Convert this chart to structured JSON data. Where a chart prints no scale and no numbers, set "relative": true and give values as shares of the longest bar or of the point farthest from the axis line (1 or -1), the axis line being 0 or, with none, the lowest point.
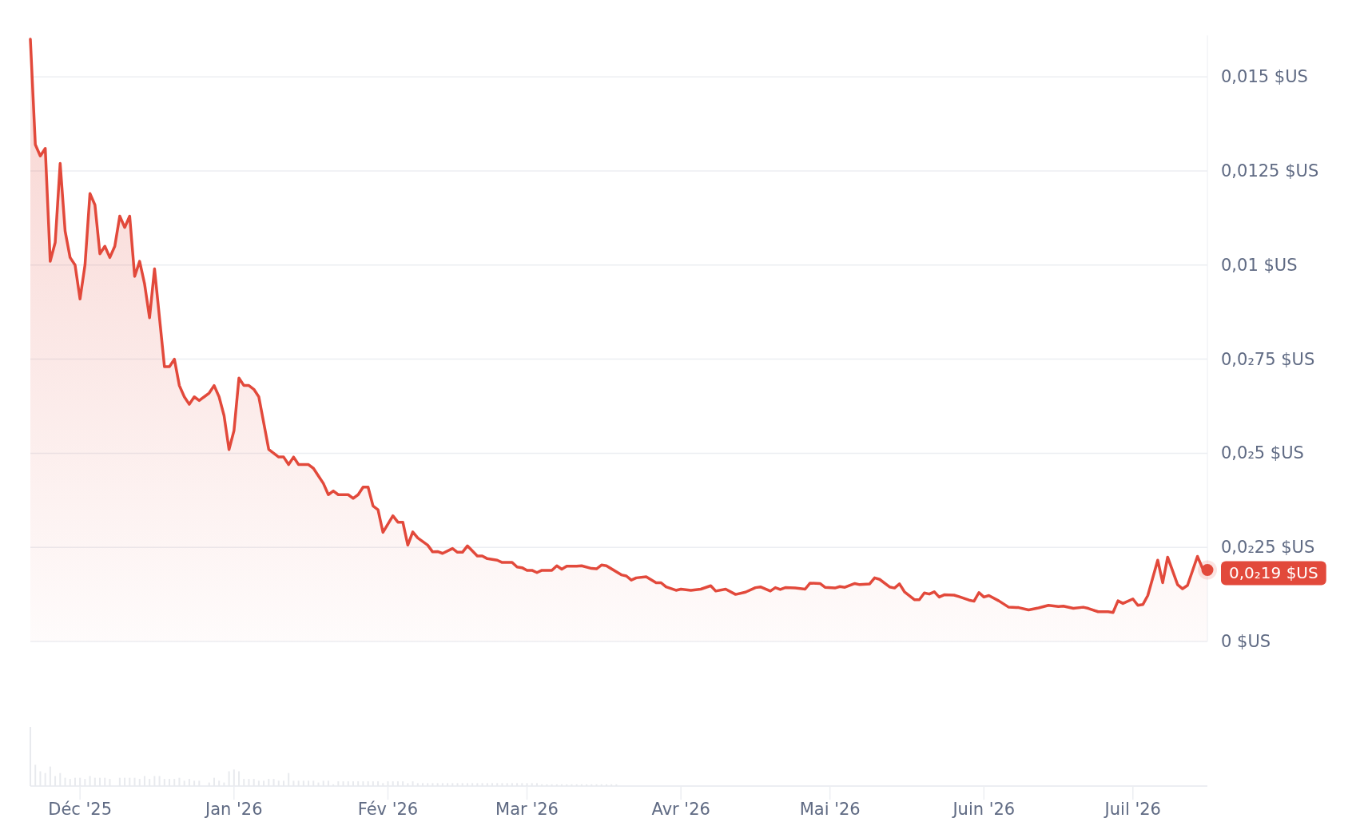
{
  "chart_data": [
    {
      "type": "area",
      "x": [
        "2025-11-21",
        "2025-11-22",
        "2025-11-23",
        "2025-11-24",
        "2025-11-25",
        "2025-11-26",
        "2025-11-27",
        "2025-11-28",
        "2025-11-29",
        "2025-11-30",
        "2025-12-01",
        "2025-12-02",
        "2025-12-03",
        "2025-12-04",
        "2025-12-05",
        "2025-12-06",
        "2025-12-07",
        "2025-12-08",
        "2025-12-09",
        "2025-12-10",
        "2025-12-11",
        "2025-12-12",
        "2025-12-13",
        "2025-12-14",
        "2025-12-15",
        "2025-12-16",
        "2025-12-18",
        "2025-12-19",
        "2025-12-20",
        "2025-12-21",
        "2025-12-22",
        "2025-12-23",
        "2025-12-24",
        "2025-12-25",
        "2025-12-26",
        "2025-12-27",
        "2025-12-28",
        "2025-12-29",
        "2025-12-30",
        "2025-12-31",
        "2026-01-01",
        "2026-01-02",
        "2026-01-03",
        "2026-01-04",
        "2026-01-05",
        "2026-01-06",
        "2026-01-08",
        "2026-01-09",
        "2026-01-10",
        "2026-01-11",
        "2026-01-12",
        "2026-01-13",
        "2026-01-14",
        "2026-01-16",
        "2026-01-17",
        "2026-01-18",
        "2026-01-19",
        "2026-01-20",
        "2026-01-21",
        "2026-01-22",
        "2026-01-24",
        "2026-01-25",
        "2026-01-26",
        "2026-01-27",
        "2026-01-28",
        "2026-01-29",
        "2026-01-30",
        "2026-01-31",
        "2026-02-02",
        "2026-02-03",
        "2026-02-04",
        "2026-02-05",
        "2026-02-06",
        "2026-02-07",
        "2026-02-09",
        "2026-02-10",
        "2026-02-11",
        "2026-02-12",
        "2026-02-14",
        "2026-02-15",
        "2026-02-16",
        "2026-02-17",
        "2026-02-19",
        "2026-02-20",
        "2026-02-21",
        "2026-02-23",
        "2026-02-24",
        "2026-02-26",
        "2026-02-27",
        "2026-02-28",
        "2026-03-01",
        "2026-03-02",
        "2026-03-03",
        "2026-03-04",
        "2026-03-06",
        "2026-03-07",
        "2026-03-08",
        "2026-03-09",
        "2026-03-11",
        "2026-03-12",
        "2026-03-14",
        "2026-03-15",
        "2026-03-16",
        "2026-03-17",
        "2026-03-20",
        "2026-03-21",
        "2026-03-22",
        "2026-03-23",
        "2026-03-25",
        "2026-03-27",
        "2026-03-28",
        "2026-03-29",
        "2026-03-31",
        "2026-04-01",
        "2026-04-03",
        "2026-04-05",
        "2026-04-07",
        "2026-04-08",
        "2026-04-10",
        "2026-04-12",
        "2026-04-14",
        "2026-04-16",
        "2026-04-17",
        "2026-04-19",
        "2026-04-20",
        "2026-04-21",
        "2026-04-22",
        "2026-04-24",
        "2026-04-26",
        "2026-04-27",
        "2026-04-29",
        "2026-04-30",
        "2026-05-02",
        "2026-05-03",
        "2026-05-04",
        "2026-05-06",
        "2026-05-07",
        "2026-05-09",
        "2026-05-10",
        "2026-05-11",
        "2026-05-13",
        "2026-05-14",
        "2026-05-15",
        "2026-05-16",
        "2026-05-18",
        "2026-05-19",
        "2026-05-20",
        "2026-05-21",
        "2026-05-22",
        "2026-05-23",
        "2026-05-24",
        "2026-05-26",
        "2026-05-27",
        "2026-05-29",
        "2026-05-30",
        "2026-05-31",
        "2026-06-01",
        "2026-06-02",
        "2026-06-04",
        "2026-06-06",
        "2026-06-08",
        "2026-06-10",
        "2026-06-12",
        "2026-06-14",
        "2026-06-16",
        "2026-06-17",
        "2026-06-19",
        "2026-06-21",
        "2026-06-22",
        "2026-06-24",
        "2026-06-26",
        "2026-06-27",
        "2026-06-28",
        "2026-06-29",
        "2026-07-01",
        "2026-07-02",
        "2026-07-03",
        "2026-07-04",
        "2026-07-06",
        "2026-07-07",
        "2026-07-08",
        "2026-07-10",
        "2026-07-11",
        "2026-07-12",
        "2026-07-14",
        "2026-07-15",
        "2026-07-16"
      ],
      "series": [
        {
          "color": "#e2493b",
          "values": [
            0.016,
            0.0132,
            0.0129,
            0.0131,
            0.0101,
            0.0106,
            0.0127,
            0.0109,
            0.0102,
            0.01,
            0.0091,
            0.01,
            0.0119,
            0.0116,
            0.0103,
            0.0105,
            0.0102,
            0.0105,
            0.0113,
            0.011,
            0.0113,
            0.0097,
            0.0101,
            0.0095,
            0.0086,
            0.0099,
            0.0073,
            0.0073,
            0.0075,
            0.0068,
            0.0065,
            0.0063,
            0.0065,
            0.0064,
            0.0065,
            0.0066,
            0.0068,
            0.0065,
            0.006,
            0.0051,
            0.0056,
            0.007,
            0.0068,
            0.0068,
            0.0067,
            0.0065,
            0.0051,
            0.005,
            0.0049,
            0.0049,
            0.0047,
            0.0049,
            0.0047,
            0.0047,
            0.0046,
            0.0044,
            0.0042,
            0.0039,
            0.004,
            0.0039,
            0.0039,
            0.0038,
            0.0039,
            0.0041,
            0.0041,
            0.0036,
            0.0035,
            0.0029,
            0.00334,
            0.00317,
            0.00317,
            0.00256,
            0.00291,
            0.00275,
            0.00256,
            0.00238,
            0.00239,
            0.00234,
            0.00247,
            0.00237,
            0.00237,
            0.00254,
            0.00227,
            0.00227,
            0.0022,
            0.00216,
            0.0021,
            0.0021,
            0.00198,
            0.00196,
            0.00189,
            0.00189,
            0.00183,
            0.00189,
            0.00189,
            0.00201,
            0.00192,
            0.002,
            0.002,
            0.00201,
            0.00194,
            0.00193,
            0.00203,
            0.00201,
            0.00177,
            0.00174,
            0.00163,
            0.00169,
            0.00172,
            0.00156,
            0.00156,
            0.00145,
            0.00136,
            0.00139,
            0.00136,
            0.00139,
            0.00148,
            0.00134,
            0.00139,
            0.00125,
            0.00131,
            0.00143,
            0.00145,
            0.00134,
            0.00143,
            0.00138,
            0.00143,
            0.00142,
            0.00139,
            0.00155,
            0.00154,
            0.00144,
            0.00142,
            0.00146,
            0.00144,
            0.00154,
            0.00151,
            0.00153,
            0.00169,
            0.00165,
            0.00145,
            0.00142,
            0.00153,
            0.00132,
            0.00111,
            0.00111,
            0.00129,
            0.00126,
            0.00132,
            0.00118,
            0.00124,
            0.00123,
            0.00119,
            0.0011,
            0.00107,
            0.0013,
            0.00118,
            0.00122,
            0.00108,
            0.00091,
            0.0009,
            0.00084,
            0.00089,
            0.00096,
            0.00093,
            0.00094,
            0.00088,
            0.00091,
            0.00088,
            0.00079,
            0.00079,
            0.00077,
            0.00108,
            0.00101,
            0.00113,
            0.00096,
            0.00098,
            0.00122,
            0.00216,
            0.00156,
            0.00224,
            0.00151,
            0.0014,
            0.00149,
            0.00226,
            0.00195,
            0.0019
          ]
        }
      ],
      "xlim": [
        "2025-11-21",
        "2026-07-16"
      ],
      "ylim": [
        0,
        0.0161
      ],
      "yticks": [
        {
          "value": 0,
          "label": "0 $US"
        },
        {
          "value": 0.0025,
          "label": "0,0₂25 $US"
        },
        {
          "value": 0.005,
          "label": "0,0₂5 $US"
        },
        {
          "value": 0.0075,
          "label": "0,0₂75 $US"
        },
        {
          "value": 0.01,
          "label": "0,01 $US"
        },
        {
          "value": 0.0125,
          "label": "0,0125 $US"
        },
        {
          "value": 0.015,
          "label": "0,015 $US"
        }
      ],
      "grid": "y",
      "tick_labels": "y",
      "annotations": [
        {
          "text": "0,0₂19 $US",
          "x": "2026-07-16",
          "y": 0.0019
        }
      ]
    },
    {
      "type": "bar",
      "relative": true,
      "x": [
        "2025-11-21",
        "2025-11-22",
        "2025-11-23",
        "2025-11-24",
        "2025-11-25",
        "2025-11-26",
        "2025-11-27",
        "2025-11-28",
        "2025-11-29",
        "2025-11-30",
        "2025-12-01",
        "2025-12-02",
        "2025-12-03",
        "2025-12-04",
        "2025-12-05",
        "2025-12-06",
        "2025-12-07",
        "2025-12-09",
        "2025-12-10",
        "2025-12-11",
        "2025-12-12",
        "2025-12-13",
        "2025-12-14",
        "2025-12-15",
        "2025-12-16",
        "2025-12-17",
        "2025-12-18",
        "2025-12-19",
        "2025-12-20",
        "2025-12-21",
        "2025-12-22",
        "2025-12-23",
        "2025-12-24",
        "2025-12-25",
        "2025-12-27",
        "2025-12-28",
        "2025-12-29",
        "2025-12-30",
        "2025-12-31",
        "2026-01-01",
        "2026-01-02",
        "2026-01-03",
        "2026-01-04",
        "2026-01-05",
        "2026-01-06",
        "2026-01-07",
        "2026-01-08",
        "2026-01-09",
        "2026-01-10",
        "2026-01-11",
        "2026-01-12",
        "2026-01-13",
        "2026-01-14",
        "2026-01-15",
        "2026-01-16",
        "2026-01-17",
        "2026-01-18",
        "2026-01-19",
        "2026-01-20",
        "2026-01-21",
        "2026-01-22",
        "2026-01-23",
        "2026-01-24",
        "2026-01-25",
        "2026-01-26",
        "2026-01-27",
        "2026-01-28",
        "2026-01-29",
        "2026-01-30",
        "2026-01-31",
        "2026-02-01",
        "2026-02-02",
        "2026-02-03",
        "2026-02-04",
        "2026-02-05",
        "2026-02-06",
        "2026-02-07",
        "2026-02-08",
        "2026-02-09",
        "2026-02-10",
        "2026-02-11",
        "2026-02-12",
        "2026-02-13",
        "2026-02-14",
        "2026-02-15",
        "2026-02-16",
        "2026-02-17",
        "2026-02-18",
        "2026-02-19",
        "2026-02-20",
        "2026-02-21",
        "2026-02-22",
        "2026-02-23",
        "2026-02-24",
        "2026-02-25",
        "2026-02-26",
        "2026-02-27",
        "2026-02-28",
        "2026-03-01",
        "2026-03-02",
        "2026-03-03",
        "2026-03-04",
        "2026-03-05",
        "2026-03-06",
        "2026-03-07",
        "2026-03-08",
        "2026-03-09",
        "2026-03-10",
        "2026-03-11",
        "2026-03-12",
        "2026-03-13",
        "2026-03-14",
        "2026-03-15",
        "2026-03-16",
        "2026-03-17",
        "2026-03-18",
        "2026-03-19"
      ],
      "series": [
        {
          "color": "#e8eaee",
          "values": [
            1.0,
            0.36,
            0.25,
            0.22,
            0.33,
            0.17,
            0.22,
            0.14,
            0.12,
            0.14,
            0.14,
            0.12,
            0.17,
            0.14,
            0.14,
            0.14,
            0.12,
            0.14,
            0.14,
            0.14,
            0.14,
            0.12,
            0.17,
            0.12,
            0.17,
            0.17,
            0.12,
            0.12,
            0.12,
            0.14,
            0.09,
            0.12,
            0.09,
            0.09,
            0.06,
            0.14,
            0.09,
            0.06,
            0.25,
            0.28,
            0.25,
            0.12,
            0.12,
            0.12,
            0.09,
            0.09,
            0.12,
            0.12,
            0.09,
            0.09,
            0.22,
            0.09,
            0.09,
            0.09,
            0.09,
            0.09,
            0.06,
            0.09,
            0.09,
            0.03,
            0.08,
            0.08,
            0.08,
            0.08,
            0.08,
            0.08,
            0.08,
            0.08,
            0.08,
            0.05,
            0.08,
            0.08,
            0.08,
            0.08,
            0.05,
            0.08,
            0.05,
            0.05,
            0.05,
            0.05,
            0.05,
            0.05,
            0.05,
            0.05,
            0.05,
            0.05,
            0.05,
            0.05,
            0.05,
            0.05,
            0.05,
            0.05,
            0.05,
            0.05,
            0.05,
            0.05,
            0.05,
            0.05,
            0.05,
            0.05,
            0.05,
            0.03,
            0.03,
            0.03,
            0.03,
            0.03,
            0.03,
            0.03,
            0.03,
            0.03,
            0.03,
            0.03,
            0.03,
            0.03,
            0.03,
            0.03,
            0.03
          ]
        }
      ],
      "xlim": [
        "2025-11-21",
        "2026-07-16"
      ],
      "xticks": [
        {
          "value": "2025-12-01",
          "label": "Déc '25"
        },
        {
          "value": "2026-01-01",
          "label": "Jan '26"
        },
        {
          "value": "2026-02-01",
          "label": "Fév '26"
        },
        {
          "value": "2026-03-01",
          "label": "Mar '26"
        },
        {
          "value": "2026-04-01",
          "label": "Avr '26"
        },
        {
          "value": "2026-05-01",
          "label": "Mai '26"
        },
        {
          "value": "2026-06-01",
          "label": "Juin '26"
        },
        {
          "value": "2026-07-01",
          "label": "Juil '26"
        }
      ],
      "tick_labels": "x"
    }
  ]
}
